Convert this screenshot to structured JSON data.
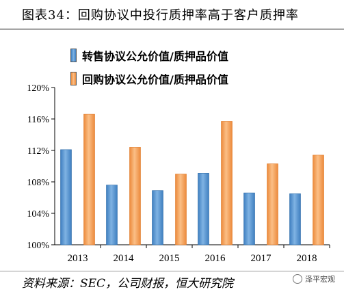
{
  "title": "图表34：回购协议中投行质押率高于客户质押率",
  "source": "资料来源：SEC，公司财报，恒大研究院",
  "watermark": "泽平宏观",
  "colors": {
    "series1": "#5b9bd5",
    "series1_dark": "#2e6ca8",
    "series2": "#f4a460",
    "series2_dark": "#e07b2a",
    "axis": "#000000"
  },
  "chart_data": {
    "type": "bar",
    "categories": [
      "2013",
      "2014",
      "2015",
      "2016",
      "2017",
      "2018"
    ],
    "series": [
      {
        "name": "转售协议公允价值/质押品价值",
        "values": [
          112.1,
          107.6,
          106.9,
          109.1,
          106.6,
          106.5
        ]
      },
      {
        "name": "回购协议公允价值/质押品价值",
        "values": [
          116.6,
          112.4,
          109.0,
          115.7,
          110.3,
          111.4
        ]
      }
    ],
    "ylim": [
      100,
      120
    ],
    "yticks": [
      100,
      104,
      108,
      112,
      116,
      120
    ],
    "ytick_labels": [
      "100%",
      "104%",
      "108%",
      "112%",
      "116%",
      "120%"
    ],
    "grid": false,
    "legend": "top-left"
  }
}
